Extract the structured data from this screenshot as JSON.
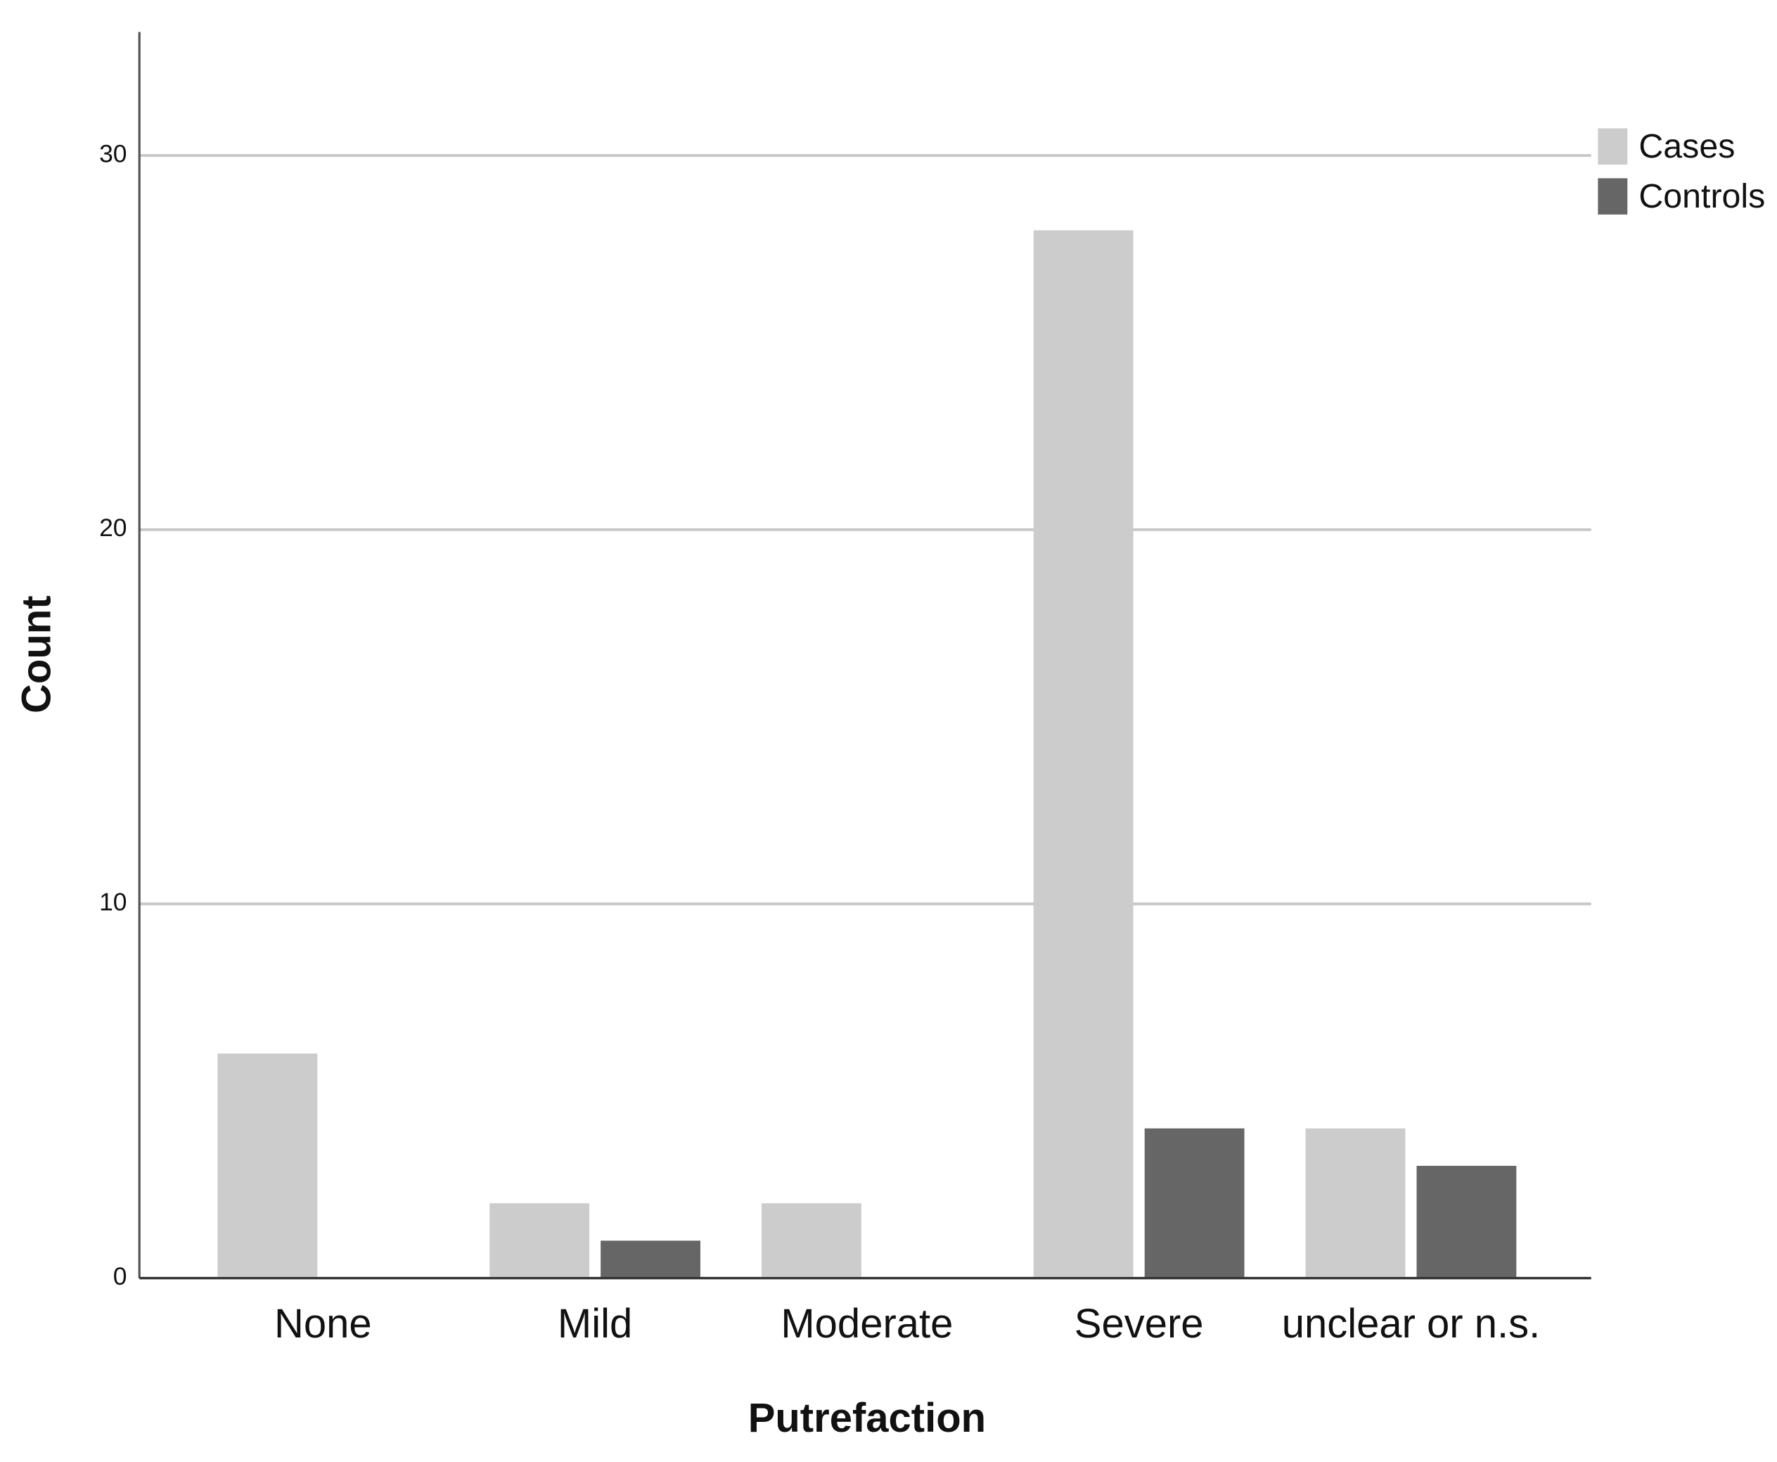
{
  "chart_data": {
    "type": "bar",
    "x_label": "Putrefaction",
    "y_label": "Count",
    "categories": [
      "None",
      "Mild",
      "Moderate",
      "Severe",
      "unclear or n.s."
    ],
    "series": [
      {
        "name": "Cases",
        "color": "#cccccc",
        "values": [
          6,
          2,
          2,
          28,
          4
        ]
      },
      {
        "name": "Controls",
        "color": "#666666",
        "values": [
          0,
          1,
          0,
          4,
          3
        ]
      }
    ],
    "ylim": [
      0,
      33.3
    ],
    "yticks": [
      0,
      10,
      20,
      30
    ],
    "grid": true,
    "legend": "top-right"
  }
}
